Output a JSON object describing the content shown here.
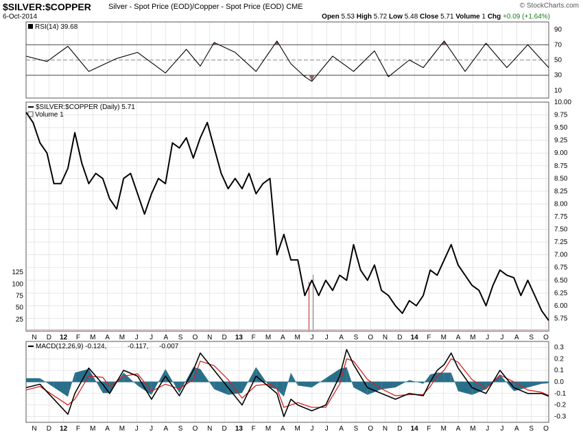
{
  "header": {
    "symbol": "$SILVER:$COPPER",
    "description": "Silver - Spot Price (EOD)/Copper - Spot Price (EOD)",
    "exchange": "CME",
    "date": "6-Oct-2014",
    "watermark": "© StockCharts.com",
    "ohlc": {
      "open_label": "Open",
      "open": "5.53",
      "high_label": "High",
      "high": "5.72",
      "low_label": "Low",
      "low": "5.48",
      "close_label": "Close",
      "close": "5.71",
      "volume_label": "Volume",
      "volume": "1",
      "chg_label": "Chg",
      "chg": "+0.09 (+1.64%)"
    }
  },
  "colors": {
    "price": "#000000",
    "rsi": "#000000",
    "rsi_fill": "#7a4a4a",
    "macd": "#000000",
    "signal": "#d62020",
    "histogram": "#2a6f8a",
    "grid": "#d8d8d8",
    "volume": "#c44040"
  },
  "chart_data": [
    {
      "type": "line",
      "name": "RSI",
      "legend": "RSI(14) 39.68",
      "ylim": [
        0,
        100
      ],
      "yticks": [
        10,
        30,
        50,
        70,
        90
      ],
      "levels": [
        30,
        50,
        70
      ],
      "x": [
        0,
        3,
        6,
        9,
        13,
        16,
        20,
        23,
        25,
        27,
        30,
        33,
        36,
        38,
        40,
        41,
        44,
        47,
        50,
        52,
        55,
        57,
        60,
        63,
        66,
        69,
        72,
        75
      ],
      "values": [
        55,
        48,
        68,
        35,
        52,
        60,
        33,
        64,
        42,
        73,
        60,
        35,
        75,
        45,
        28,
        22,
        55,
        35,
        62,
        28,
        50,
        40,
        75,
        35,
        72,
        40,
        70,
        40
      ]
    },
    {
      "type": "line",
      "name": "Price",
      "title": "$SILVER:$COPPER (Daily) 5.71",
      "ylabel": "",
      "ylim": [
        5.5,
        10.0
      ],
      "yticks": [
        5.75,
        6.0,
        6.25,
        6.5,
        6.75,
        7.0,
        7.25,
        7.5,
        7.75,
        8.0,
        8.25,
        8.5,
        8.75,
        9.0,
        9.25,
        9.5,
        9.75,
        10.0
      ],
      "x": [
        0,
        1,
        2,
        3,
        4,
        5,
        6,
        7,
        8,
        9,
        10,
        11,
        12,
        13,
        14,
        15,
        16,
        17,
        18,
        19,
        20,
        21,
        22,
        23,
        24,
        25,
        26,
        27,
        28,
        29,
        30,
        31,
        32,
        33,
        34,
        35,
        36,
        37,
        38,
        39,
        40,
        41,
        42,
        43,
        44,
        45,
        46,
        47,
        48,
        49,
        50,
        51,
        52,
        53,
        54,
        55,
        56,
        57,
        58,
        59,
        60,
        61,
        62,
        63,
        64,
        65,
        66,
        67,
        68,
        69,
        70,
        71,
        72,
        73,
        74,
        75
      ],
      "values": [
        9.8,
        9.6,
        9.2,
        9.0,
        8.4,
        8.4,
        8.7,
        9.4,
        8.8,
        8.4,
        8.6,
        8.5,
        8.1,
        7.9,
        8.5,
        8.6,
        8.2,
        7.8,
        8.2,
        8.5,
        8.4,
        9.2,
        9.1,
        9.3,
        8.9,
        9.3,
        9.6,
        9.1,
        8.6,
        8.3,
        8.5,
        8.3,
        8.6,
        8.2,
        8.4,
        8.5,
        7.0,
        7.4,
        6.9,
        6.9,
        6.2,
        6.5,
        6.2,
        6.5,
        6.3,
        6.6,
        6.5,
        7.2,
        6.7,
        6.5,
        6.8,
        6.3,
        6.2,
        6.0,
        5.85,
        6.1,
        6.0,
        6.2,
        6.7,
        6.6,
        6.9,
        7.2,
        6.8,
        6.6,
        6.4,
        6.3,
        6.0,
        6.4,
        6.7,
        6.6,
        6.55,
        6.2,
        6.5,
        6.2,
        5.9,
        5.71
      ]
    },
    {
      "type": "bar",
      "name": "Volume",
      "legend": "Volume 1",
      "ylim": [
        0,
        150
      ],
      "yticks": [
        25,
        50,
        75,
        100,
        125
      ],
      "x": [
        40.6,
        41.2
      ],
      "values": [
        105,
        120
      ]
    },
    {
      "type": "line",
      "name": "MACD",
      "legend_name": "MACD(12,26,9)",
      "legend_macd": "-0.124",
      "legend_signal": "-0.117",
      "legend_hist": "-0.007",
      "ylim": [
        -0.35,
        0.35
      ],
      "yticks": [
        -0.3,
        -0.2,
        -0.1,
        0.0,
        0.1,
        0.2,
        0.3
      ],
      "x": [
        0,
        2,
        4,
        6,
        7,
        9,
        11,
        12,
        14,
        16,
        18,
        20,
        22,
        24,
        25,
        27,
        29,
        31,
        33,
        35,
        36,
        37,
        38,
        39,
        41,
        43,
        45,
        46,
        47,
        49,
        51,
        53,
        55,
        57,
        58,
        59,
        60,
        61,
        62,
        64,
        66,
        68,
        70,
        72,
        74,
        75
      ],
      "macd": [
        -0.05,
        -0.02,
        -0.15,
        -0.28,
        -0.1,
        0.12,
        -0.02,
        -0.1,
        0.1,
        0.05,
        -0.15,
        0.05,
        -0.12,
        0.1,
        0.25,
        0.1,
        -0.05,
        -0.2,
        0.05,
        -0.05,
        -0.1,
        -0.3,
        -0.15,
        -0.2,
        -0.25,
        -0.2,
        0.05,
        0.28,
        0.15,
        -0.05,
        -0.1,
        -0.15,
        -0.1,
        -0.12,
        0.0,
        0.1,
        0.15,
        0.25,
        0.12,
        -0.05,
        -0.1,
        0.1,
        -0.05,
        -0.1,
        -0.1,
        -0.124
      ],
      "signal": [
        -0.07,
        -0.04,
        -0.12,
        -0.2,
        -0.15,
        0.05,
        0.04,
        -0.04,
        0.05,
        0.07,
        -0.08,
        -0.02,
        -0.06,
        0.02,
        0.18,
        0.14,
        0.02,
        -0.14,
        -0.03,
        -0.02,
        -0.06,
        -0.22,
        -0.2,
        -0.18,
        -0.22,
        -0.22,
        -0.02,
        0.2,
        0.18,
        0.02,
        -0.06,
        -0.12,
        -0.11,
        -0.11,
        -0.04,
        0.05,
        0.1,
        0.2,
        0.17,
        0.02,
        -0.06,
        0.06,
        0.0,
        -0.07,
        -0.09,
        -0.117
      ]
    }
  ],
  "x_axis": {
    "labels": [
      "N",
      "D",
      "12",
      "F",
      "M",
      "A",
      "M",
      "J",
      "J",
      "A",
      "S",
      "O",
      "N",
      "D",
      "13",
      "F",
      "M",
      "A",
      "M",
      "J",
      "J",
      "A",
      "S",
      "O",
      "N",
      "D",
      "14",
      "F",
      "M",
      "A",
      "M",
      "J",
      "J",
      "A",
      "S",
      "O"
    ],
    "year_labels": [
      "12",
      "13",
      "14"
    ]
  }
}
